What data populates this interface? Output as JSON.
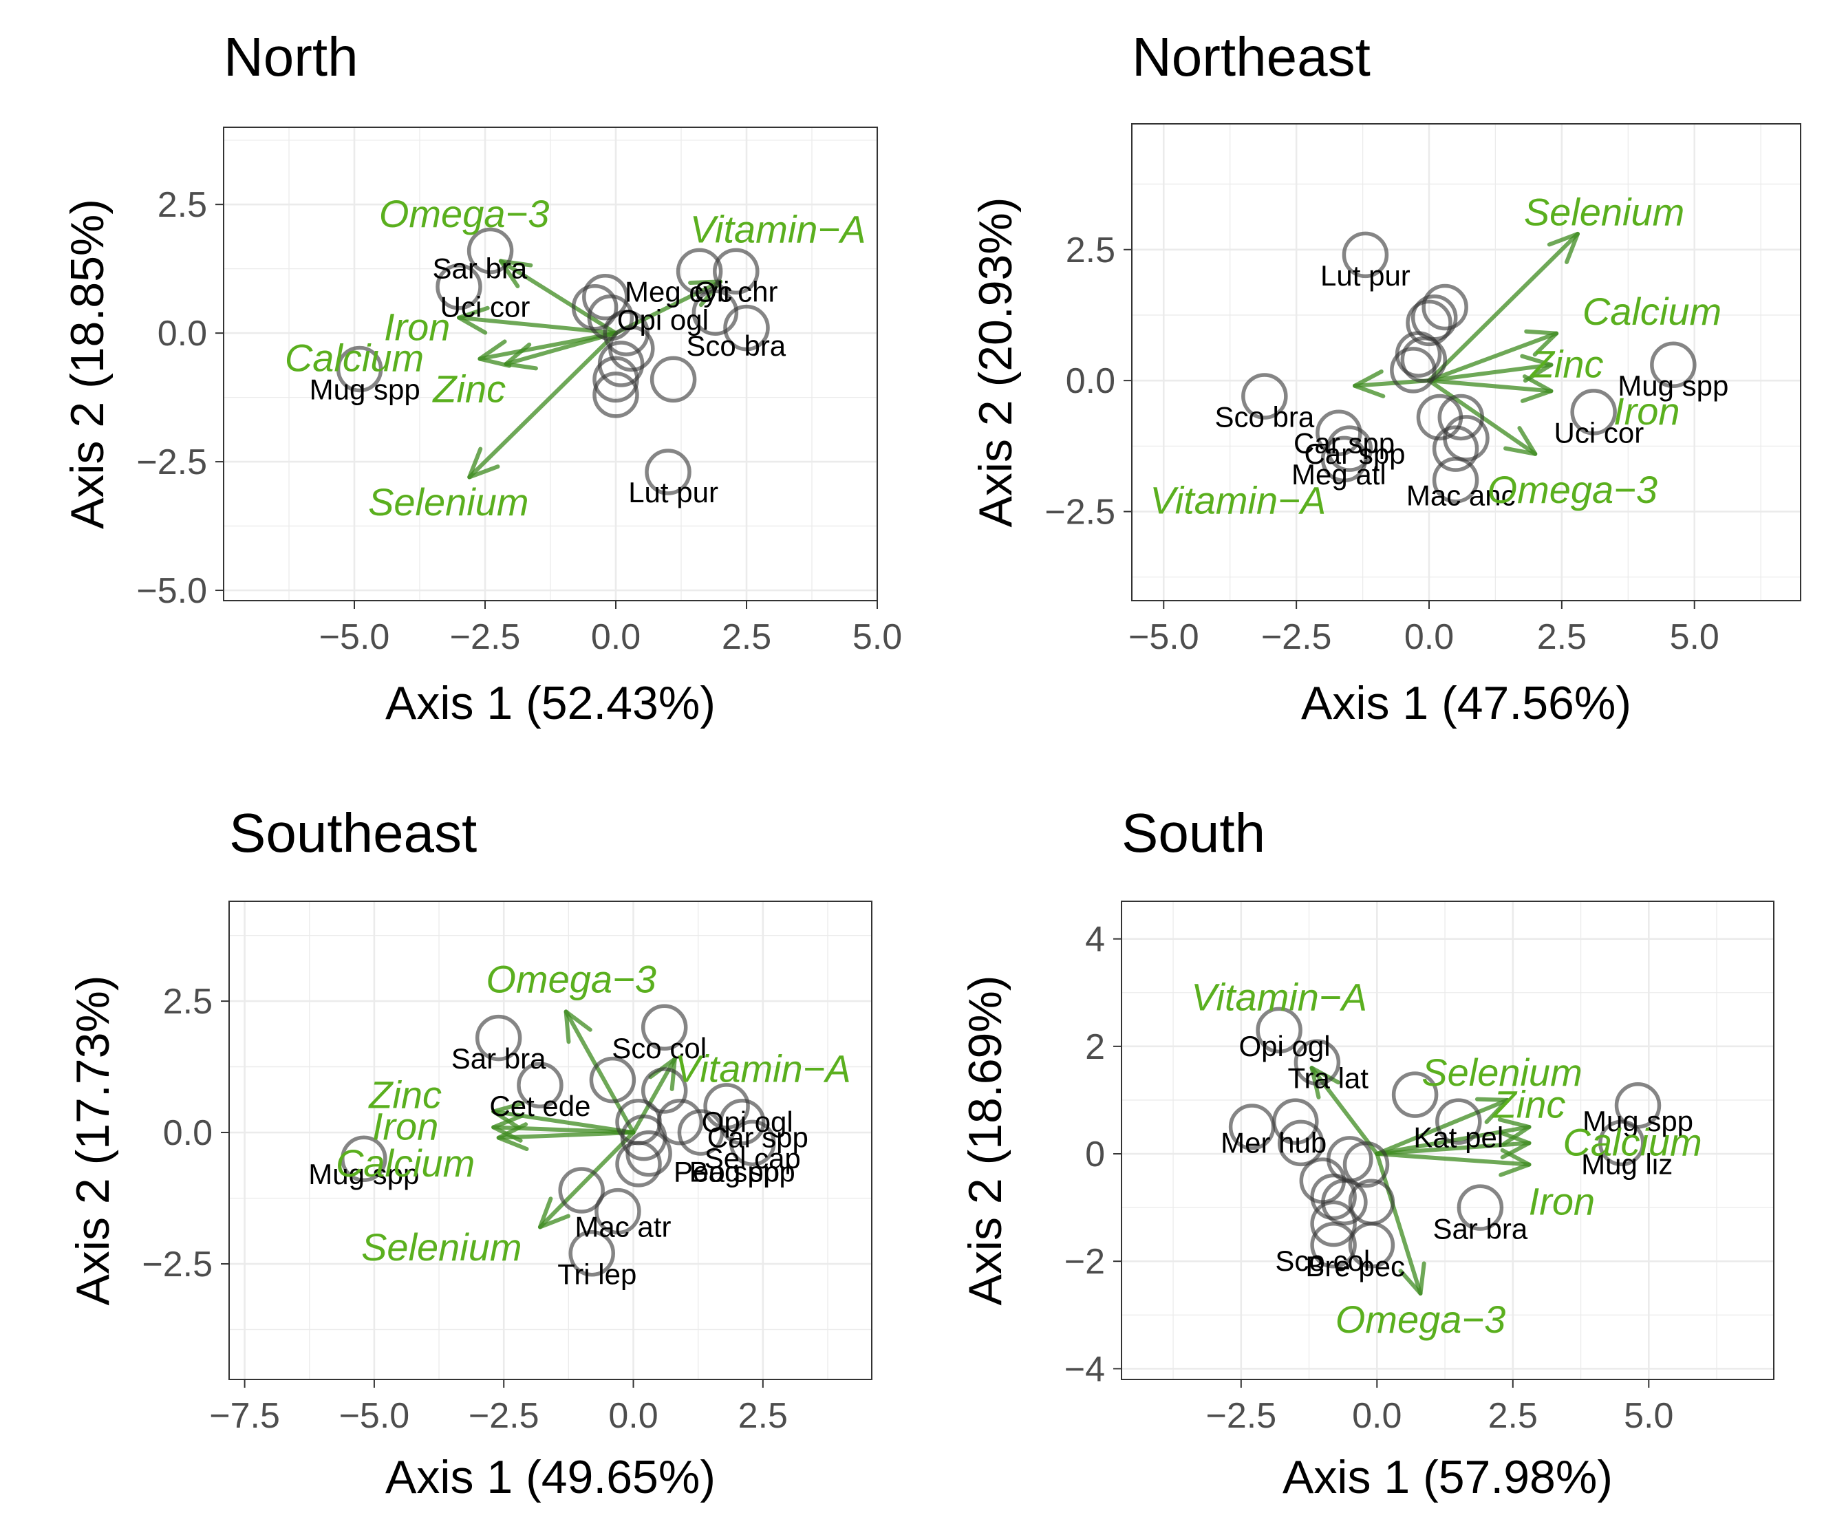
{
  "colors": {
    "arrow": "#3d8b1f",
    "var_label": "#5aaf1e",
    "point": "#333333"
  },
  "chart_data": [
    {
      "type": "scatter",
      "title": "North",
      "xlabel": "Axis 1 (52.43%)",
      "ylabel": "Axis 2 (18.85%)",
      "xlim": [
        -7.5,
        5.0
      ],
      "ylim": [
        -5.2,
        4.0
      ],
      "xticks": [
        -5.0,
        -2.5,
        0.0,
        2.5,
        5.0
      ],
      "xtick_labels": [
        "−5.0",
        "−2.5",
        "0.0",
        "2.5",
        "5.0"
      ],
      "yticks": [
        -5.0,
        -2.5,
        0.0,
        2.5
      ],
      "ytick_labels": [
        "−5.0",
        "−2.5",
        "0.0",
        "2.5"
      ],
      "points": [
        {
          "x": -2.4,
          "y": 1.6
        },
        {
          "x": -3.0,
          "y": 0.9
        },
        {
          "x": -4.9,
          "y": -0.7
        },
        {
          "x": -0.2,
          "y": 0.7
        },
        {
          "x": -0.4,
          "y": 0.5
        },
        {
          "x": -0.1,
          "y": 0.3
        },
        {
          "x": 0.2,
          "y": 0.0
        },
        {
          "x": 0.3,
          "y": -0.3
        },
        {
          "x": 0.1,
          "y": -0.6
        },
        {
          "x": 0.0,
          "y": -0.9
        },
        {
          "x": 0.0,
          "y": -1.2
        },
        {
          "x": 1.1,
          "y": -0.9
        },
        {
          "x": 1.6,
          "y": 1.2
        },
        {
          "x": 2.3,
          "y": 1.2
        },
        {
          "x": 1.9,
          "y": 0.4
        },
        {
          "x": 2.5,
          "y": 0.1
        },
        {
          "x": 1.0,
          "y": -2.7
        }
      ],
      "point_labels": [
        {
          "text": "Sar bra",
          "x": -2.6,
          "y": 1.25
        },
        {
          "text": "Uci cor",
          "x": -2.5,
          "y": 0.5
        },
        {
          "text": "Mug spp",
          "x": -4.8,
          "y": -1.1
        },
        {
          "text": "Meg cyc",
          "x": 1.2,
          "y": 0.8
        },
        {
          "text": "Oli chr",
          "x": 2.3,
          "y": 0.8
        },
        {
          "text": "Opi ogl",
          "x": 0.9,
          "y": 0.25
        },
        {
          "text": "Sco bra",
          "x": 2.3,
          "y": -0.25
        },
        {
          "text": "Lut pur",
          "x": 1.1,
          "y": -3.1
        }
      ],
      "arrows": [
        {
          "name": "Omega−3",
          "x": -2.2,
          "y": 1.4,
          "lx": -2.9,
          "ly": 2.3
        },
        {
          "name": "Vitamin−A",
          "x": 2.0,
          "y": 1.0,
          "lx": 3.1,
          "ly": 2.0
        },
        {
          "name": "Iron",
          "x": -3.0,
          "y": 0.3,
          "lx": -3.8,
          "ly": 0.1
        },
        {
          "name": "Calcium",
          "x": -2.6,
          "y": -0.5,
          "lx": -5.0,
          "ly": -0.5
        },
        {
          "name": "Zinc",
          "x": -2.1,
          "y": -0.6,
          "lx": -2.8,
          "ly": -1.1
        },
        {
          "name": "Selenium",
          "x": -2.8,
          "y": -2.8,
          "lx": -3.2,
          "ly": -3.3
        }
      ]
    },
    {
      "type": "scatter",
      "title": "Northeast",
      "xlabel": "Axis 1 (47.56%)",
      "ylabel": "Axis 2 (20.93%)",
      "xlim": [
        -5.6,
        7.0
      ],
      "ylim": [
        -4.2,
        4.9
      ],
      "xticks": [
        -5.0,
        -2.5,
        0.0,
        2.5,
        5.0
      ],
      "xtick_labels": [
        "−5.0",
        "−2.5",
        "0.0",
        "2.5",
        "5.0"
      ],
      "yticks": [
        -2.5,
        0.0,
        2.5
      ],
      "ytick_labels": [
        "−2.5",
        "0.0",
        "2.5"
      ],
      "points": [
        {
          "x": -1.2,
          "y": 2.4
        },
        {
          "x": 0.3,
          "y": 1.4
        },
        {
          "x": 0.1,
          "y": 1.2
        },
        {
          "x": 0.0,
          "y": 1.1
        },
        {
          "x": -0.2,
          "y": 0.5
        },
        {
          "x": -0.1,
          "y": 0.4
        },
        {
          "x": -0.3,
          "y": 0.2
        },
        {
          "x": -3.1,
          "y": -0.3
        },
        {
          "x": -1.7,
          "y": -1.0
        },
        {
          "x": -1.5,
          "y": -1.3
        },
        {
          "x": -1.6,
          "y": -1.5
        },
        {
          "x": 0.2,
          "y": -0.7
        },
        {
          "x": 0.6,
          "y": -0.7
        },
        {
          "x": 0.7,
          "y": -1.1
        },
        {
          "x": 0.5,
          "y": -1.3
        },
        {
          "x": 0.5,
          "y": -1.9
        },
        {
          "x": 3.1,
          "y": -0.6
        },
        {
          "x": 4.6,
          "y": 0.3
        }
      ],
      "point_labels": [
        {
          "text": "Lut pur",
          "x": -1.2,
          "y": 2.0
        },
        {
          "text": "Sco bra",
          "x": -3.1,
          "y": -0.7
        },
        {
          "text": "Car spp",
          "x": -1.6,
          "y": -1.2
        },
        {
          "text": "Car spp",
          "x": -1.4,
          "y": -1.4
        },
        {
          "text": "Meg atl",
          "x": -1.7,
          "y": -1.8
        },
        {
          "text": "Mac anc",
          "x": 0.6,
          "y": -2.2
        },
        {
          "text": "Uci cor",
          "x": 3.2,
          "y": -1.0
        },
        {
          "text": "Mug spp",
          "x": 4.6,
          "y": -0.1
        }
      ],
      "arrows": [
        {
          "name": "Selenium",
          "x": 2.8,
          "y": 2.8,
          "lx": 3.3,
          "ly": 3.2
        },
        {
          "name": "Calcium",
          "x": 2.4,
          "y": 0.9,
          "lx": 4.2,
          "ly": 1.3
        },
        {
          "name": "Zinc",
          "x": 2.3,
          "y": 0.3,
          "lx": 2.6,
          "ly": 0.3
        },
        {
          "name": "Iron",
          "x": 2.3,
          "y": -0.2,
          "lx": 4.1,
          "ly": -0.6
        },
        {
          "name": "Omega−3",
          "x": 2.0,
          "y": -1.4,
          "lx": 2.7,
          "ly": -2.1
        },
        {
          "name": "Vitamin−A",
          "x": -1.4,
          "y": -0.1,
          "lx": -3.6,
          "ly": -2.3
        }
      ]
    },
    {
      "type": "scatter",
      "title": "Southeast",
      "xlabel": "Axis 1 (49.65%)",
      "ylabel": "Axis 2 (17.73%)",
      "xlim": [
        -7.8,
        4.6
      ],
      "ylim": [
        -4.7,
        4.4
      ],
      "xticks": [
        -7.5,
        -5.0,
        -2.5,
        0.0,
        2.5
      ],
      "xtick_labels": [
        "−7.5",
        "−5.0",
        "−2.5",
        "0.0",
        "2.5"
      ],
      "yticks": [
        -2.5,
        0.0,
        2.5
      ],
      "ytick_labels": [
        "−2.5",
        "0.0",
        "2.5"
      ],
      "points": [
        {
          "x": -2.6,
          "y": 1.8
        },
        {
          "x": -1.8,
          "y": 0.9
        },
        {
          "x": -5.2,
          "y": -0.5
        },
        {
          "x": -0.4,
          "y": 1.0
        },
        {
          "x": 0.6,
          "y": 2.0
        },
        {
          "x": 0.6,
          "y": 0.8
        },
        {
          "x": 0.1,
          "y": 0.2
        },
        {
          "x": 0.2,
          "y": -0.1
        },
        {
          "x": 0.3,
          "y": -0.4
        },
        {
          "x": 0.1,
          "y": -0.6
        },
        {
          "x": 0.9,
          "y": 0.2
        },
        {
          "x": 1.3,
          "y": 0.0
        },
        {
          "x": 1.8,
          "y": 0.5
        },
        {
          "x": 2.1,
          "y": 0.2
        },
        {
          "x": 2.3,
          "y": -0.2
        },
        {
          "x": -1.0,
          "y": -1.1
        },
        {
          "x": -0.3,
          "y": -1.5
        },
        {
          "x": -0.8,
          "y": -2.3
        }
      ],
      "point_labels": [
        {
          "text": "Sar bra",
          "x": -2.6,
          "y": 1.4
        },
        {
          "text": "Sco col",
          "x": 0.5,
          "y": 1.6
        },
        {
          "text": "Cet ede",
          "x": -1.8,
          "y": 0.5
        },
        {
          "text": "Opi ogl",
          "x": 2.2,
          "y": 0.2
        },
        {
          "text": "Car spp",
          "x": 2.4,
          "y": -0.1
        },
        {
          "text": "Sel cap",
          "x": 2.3,
          "y": -0.5
        },
        {
          "text": "Peo spp",
          "x": 1.8,
          "y": -0.75
        },
        {
          "text": "Bag spp",
          "x": 2.1,
          "y": -0.75
        },
        {
          "text": "Mug spp",
          "x": -5.2,
          "y": -0.8
        },
        {
          "text": "Mac atr",
          "x": -0.2,
          "y": -1.8
        },
        {
          "text": "Tri lep",
          "x": -0.7,
          "y": -2.7
        }
      ],
      "arrows": [
        {
          "name": "Omega−3",
          "x": -1.3,
          "y": 2.3,
          "lx": -1.2,
          "ly": 2.9
        },
        {
          "name": "Vitamin−A",
          "x": 0.8,
          "y": 1.4,
          "lx": 2.5,
          "ly": 1.2
        },
        {
          "name": "Zinc",
          "x": -2.7,
          "y": 0.4,
          "lx": -4.4,
          "ly": 0.7
        },
        {
          "name": "Iron",
          "x": -2.7,
          "y": 0.1,
          "lx": -4.4,
          "ly": 0.1
        },
        {
          "name": "Calcium",
          "x": -2.6,
          "y": -0.1,
          "lx": -4.4,
          "ly": -0.6
        },
        {
          "name": "Selenium",
          "x": -1.8,
          "y": -1.8,
          "lx": -3.7,
          "ly": -2.2
        }
      ]
    },
    {
      "type": "scatter",
      "title": "South",
      "xlabel": "Axis 1 (57.98%)",
      "ylabel": "Axis 2 (18.69%)",
      "xlim": [
        -4.7,
        7.3
      ],
      "ylim": [
        -4.2,
        4.7
      ],
      "xticks": [
        -2.5,
        0.0,
        2.5,
        5.0
      ],
      "xtick_labels": [
        "−2.5",
        "0.0",
        "2.5",
        "5.0"
      ],
      "yticks": [
        -4,
        -2,
        0,
        2,
        4
      ],
      "ytick_labels": [
        "−4",
        "−2",
        "0",
        "2",
        "4"
      ],
      "points": [
        {
          "x": -1.8,
          "y": 2.3
        },
        {
          "x": -1.1,
          "y": 1.7
        },
        {
          "x": -2.3,
          "y": 0.5
        },
        {
          "x": -1.5,
          "y": 0.6
        },
        {
          "x": -1.4,
          "y": 0.2
        },
        {
          "x": -0.5,
          "y": -0.1
        },
        {
          "x": -0.2,
          "y": -0.2
        },
        {
          "x": -1.0,
          "y": -0.5
        },
        {
          "x": -0.8,
          "y": -0.8
        },
        {
          "x": -0.6,
          "y": -0.9
        },
        {
          "x": -0.1,
          "y": -0.9
        },
        {
          "x": -0.8,
          "y": -1.3
        },
        {
          "x": -0.8,
          "y": -1.7
        },
        {
          "x": -0.1,
          "y": -1.7
        },
        {
          "x": 0.7,
          "y": 1.1
        },
        {
          "x": 1.5,
          "y": 0.6
        },
        {
          "x": 1.9,
          "y": -1.0
        },
        {
          "x": 4.8,
          "y": 0.9
        },
        {
          "x": 4.5,
          "y": 0.2
        }
      ],
      "point_labels": [
        {
          "text": "Opi ogl",
          "x": -1.7,
          "y": 2.0
        },
        {
          "text": "Tra lat",
          "x": -0.9,
          "y": 1.4
        },
        {
          "text": "Mer hub",
          "x": -1.9,
          "y": 0.2
        },
        {
          "text": "Kat pel",
          "x": 1.5,
          "y": 0.3
        },
        {
          "text": "Mug spp",
          "x": 4.8,
          "y": 0.6
        },
        {
          "text": "Mug liz",
          "x": 4.6,
          "y": -0.2
        },
        {
          "text": "Sar bra",
          "x": 1.9,
          "y": -1.4
        },
        {
          "text": "Sco col",
          "x": -1.0,
          "y": -2.0
        },
        {
          "text": "Bre pec",
          "x": -0.4,
          "y": -2.1
        }
      ],
      "arrows": [
        {
          "name": "Vitamin−A",
          "x": -1.2,
          "y": 1.6,
          "lx": -1.8,
          "ly": 2.9
        },
        {
          "name": "Selenium",
          "x": 2.4,
          "y": 1.0,
          "lx": 2.3,
          "ly": 1.5
        },
        {
          "name": "Zinc",
          "x": 2.8,
          "y": 0.5,
          "lx": 2.8,
          "ly": 0.9
        },
        {
          "name": "Calcium",
          "x": 2.8,
          "y": 0.2,
          "lx": 4.7,
          "ly": 0.2
        },
        {
          "name": "Iron",
          "x": 2.8,
          "y": -0.2,
          "lx": 3.4,
          "ly": -0.9
        },
        {
          "name": "Omega−3",
          "x": 0.8,
          "y": -2.6,
          "lx": 0.8,
          "ly": -3.1
        }
      ]
    }
  ]
}
